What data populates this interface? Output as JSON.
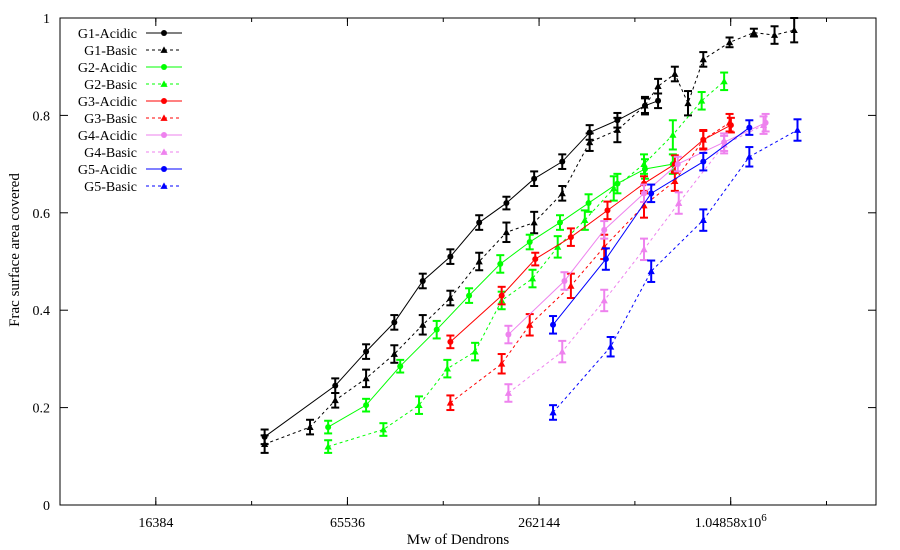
{
  "chart_data": {
    "type": "line",
    "title": "",
    "xlabel": "Mw of Dendrons",
    "ylabel": "Frac surface area covered",
    "xscale": "log2",
    "xlim": [
      8192,
      3000000
    ],
    "ylim": [
      0,
      1
    ],
    "x_ticks": [
      {
        "value": 16384,
        "label": "16384"
      },
      {
        "value": 65536,
        "label": "65536"
      },
      {
        "value": 262144,
        "label": "262144"
      },
      {
        "value": 1048576,
        "label": "1.04858x10",
        "sup": "6"
      }
    ],
    "y_ticks": [
      {
        "value": 0,
        "label": "0"
      },
      {
        "value": 0.2,
        "label": "0.2"
      },
      {
        "value": 0.4,
        "label": "0.4"
      },
      {
        "value": 0.6,
        "label": "0.6"
      },
      {
        "value": 0.8,
        "label": "0.8"
      },
      {
        "value": 1,
        "label": "1"
      }
    ],
    "grid": false,
    "legend_position": "top-left",
    "series": [
      {
        "name": "G1-Acidic",
        "color": "#000000",
        "dash": "solid",
        "marker": "circle",
        "points": [
          [
            36000,
            0.14,
            0.015
          ],
          [
            60000,
            0.245,
            0.015
          ],
          [
            75000,
            0.315,
            0.015
          ],
          [
            92000,
            0.375,
            0.015
          ],
          [
            113000,
            0.46,
            0.015
          ],
          [
            138000,
            0.51,
            0.015
          ],
          [
            170000,
            0.58,
            0.015
          ],
          [
            207000,
            0.62,
            0.013
          ],
          [
            253000,
            0.67,
            0.015
          ],
          [
            310000,
            0.705,
            0.015
          ],
          [
            378000,
            0.765,
            0.015
          ],
          [
            462000,
            0.79,
            0.015
          ],
          [
            564000,
            0.82,
            0.015
          ],
          [
            620000,
            0.83,
            0.015
          ]
        ]
      },
      {
        "name": "G1-Basic",
        "color": "#000000",
        "dash": "dashed",
        "marker": "triangle",
        "points": [
          [
            36000,
            0.125,
            0.018
          ],
          [
            50000,
            0.16,
            0.015
          ],
          [
            60000,
            0.215,
            0.015
          ],
          [
            75000,
            0.26,
            0.018
          ],
          [
            92000,
            0.31,
            0.018
          ],
          [
            113000,
            0.37,
            0.02
          ],
          [
            138000,
            0.425,
            0.015
          ],
          [
            170000,
            0.5,
            0.018
          ],
          [
            207000,
            0.56,
            0.02
          ],
          [
            253000,
            0.58,
            0.022
          ],
          [
            310000,
            0.64,
            0.015
          ],
          [
            378000,
            0.745,
            0.018
          ],
          [
            462000,
            0.77,
            0.025
          ],
          [
            564000,
            0.82,
            0.018
          ],
          [
            620000,
            0.86,
            0.015
          ],
          [
            700000,
            0.885,
            0.015
          ],
          [
            770000,
            0.825,
            0.025
          ],
          [
            860000,
            0.915,
            0.015
          ],
          [
            1040000,
            0.95,
            0.01
          ],
          [
            1240000,
            0.97,
            0.008
          ],
          [
            1440000,
            0.965,
            0.018
          ],
          [
            1660000,
            0.975,
            0.025
          ]
        ]
      },
      {
        "name": "G2-Acidic",
        "color": "#00ff00",
        "dash": "solid",
        "marker": "circle",
        "points": [
          [
            57000,
            0.16,
            0.013
          ],
          [
            75000,
            0.205,
            0.013
          ],
          [
            96000,
            0.285,
            0.013
          ],
          [
            125000,
            0.36,
            0.018
          ],
          [
            158000,
            0.43,
            0.015
          ],
          [
            198000,
            0.495,
            0.018
          ],
          [
            245000,
            0.54,
            0.015
          ],
          [
            305000,
            0.58,
            0.015
          ],
          [
            375000,
            0.62,
            0.018
          ],
          [
            462000,
            0.66,
            0.02
          ],
          [
            564000,
            0.69,
            0.02
          ],
          [
            690000,
            0.7,
            0.02
          ]
        ]
      },
      {
        "name": "G2-Basic",
        "color": "#00ff00",
        "dash": "dashed",
        "marker": "triangle",
        "points": [
          [
            57000,
            0.12,
            0.013
          ],
          [
            85000,
            0.155,
            0.013
          ],
          [
            110000,
            0.205,
            0.018
          ],
          [
            135000,
            0.28,
            0.018
          ],
          [
            165000,
            0.315,
            0.018
          ],
          [
            200000,
            0.42,
            0.018
          ],
          [
            250000,
            0.465,
            0.018
          ],
          [
            300000,
            0.53,
            0.022
          ],
          [
            365000,
            0.585,
            0.02
          ],
          [
            450000,
            0.65,
            0.025
          ],
          [
            560000,
            0.7,
            0.02
          ],
          [
            690000,
            0.76,
            0.03
          ],
          [
            850000,
            0.83,
            0.018
          ],
          [
            1000000,
            0.87,
            0.018
          ]
        ]
      },
      {
        "name": "G3-Acidic",
        "color": "#ff0000",
        "dash": "solid",
        "marker": "circle",
        "points": [
          [
            138000,
            0.335,
            0.013
          ],
          [
            200000,
            0.43,
            0.018
          ],
          [
            255000,
            0.505,
            0.013
          ],
          [
            330000,
            0.55,
            0.018
          ],
          [
            430000,
            0.605,
            0.018
          ],
          [
            560000,
            0.66,
            0.015
          ],
          [
            700000,
            0.7,
            0.018
          ],
          [
            860000,
            0.75,
            0.018
          ],
          [
            1050000,
            0.78,
            0.015
          ]
        ]
      },
      {
        "name": "G3-Basic",
        "color": "#ff0000",
        "dash": "dashed",
        "marker": "triangle",
        "points": [
          [
            138000,
            0.21,
            0.015
          ],
          [
            200000,
            0.29,
            0.02
          ],
          [
            245000,
            0.37,
            0.022
          ],
          [
            330000,
            0.45,
            0.025
          ],
          [
            420000,
            0.53,
            0.025
          ],
          [
            560000,
            0.615,
            0.025
          ],
          [
            700000,
            0.665,
            0.02
          ],
          [
            860000,
            0.75,
            0.02
          ],
          [
            1040000,
            0.785,
            0.018
          ]
        ]
      },
      {
        "name": "G4-Acidic",
        "color": "#ee82ee",
        "dash": "solid",
        "marker": "circle",
        "points": [
          [
            210000,
            0.35,
            0.018
          ],
          [
            315000,
            0.46,
            0.018
          ],
          [
            420000,
            0.565,
            0.018
          ],
          [
            560000,
            0.64,
            0.018
          ],
          [
            715000,
            0.7,
            0.015
          ],
          [
            1000000,
            0.745,
            0.018
          ],
          [
            1350000,
            0.785,
            0.018
          ]
        ]
      },
      {
        "name": "G4-Basic",
        "color": "#ee82ee",
        "dash": "dashed",
        "marker": "triangle",
        "points": [
          [
            210000,
            0.23,
            0.018
          ],
          [
            310000,
            0.315,
            0.022
          ],
          [
            420000,
            0.42,
            0.022
          ],
          [
            560000,
            0.525,
            0.022
          ],
          [
            720000,
            0.62,
            0.022
          ],
          [
            1000000,
            0.74,
            0.018
          ],
          [
            1330000,
            0.78,
            0.018
          ]
        ]
      },
      {
        "name": "G5-Acidic",
        "color": "#0000ff",
        "dash": "solid",
        "marker": "circle",
        "points": [
          [
            290000,
            0.37,
            0.018
          ],
          [
            425000,
            0.505,
            0.022
          ],
          [
            590000,
            0.64,
            0.018
          ],
          [
            860000,
            0.705,
            0.018
          ],
          [
            1200000,
            0.775,
            0.015
          ]
        ]
      },
      {
        "name": "G5-Basic",
        "color": "#0000ff",
        "dash": "dashed",
        "marker": "triangle",
        "points": [
          [
            290000,
            0.19,
            0.015
          ],
          [
            440000,
            0.325,
            0.02
          ],
          [
            590000,
            0.48,
            0.022
          ],
          [
            860000,
            0.585,
            0.022
          ],
          [
            1200000,
            0.715,
            0.02
          ],
          [
            1700000,
            0.77,
            0.022
          ]
        ]
      }
    ]
  }
}
